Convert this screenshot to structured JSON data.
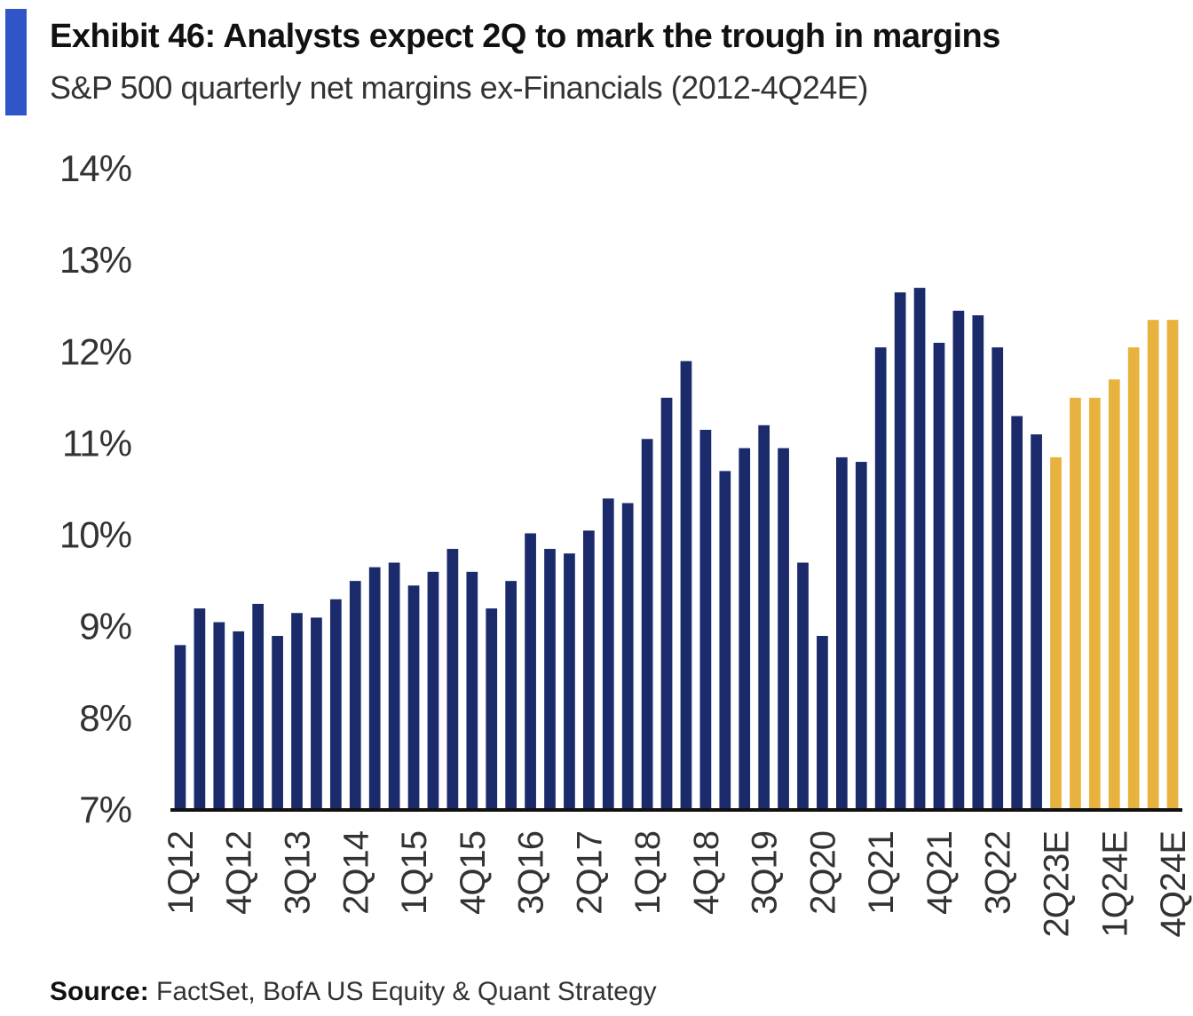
{
  "header": {
    "title": "Exhibit 46: Analysts expect 2Q to mark the trough in margins",
    "subtitle": "S&P 500 quarterly net margins ex-Financials (2012-4Q24E)"
  },
  "footer": {
    "source_label": "Source:",
    "source_text": "FactSet, BofA US Equity & Quant Strategy"
  },
  "colors": {
    "actual": "#1b2a6b",
    "estimate": "#e8b23e",
    "accent": "#2f55c8",
    "axis": "#111111"
  },
  "chart_data": {
    "type": "bar",
    "title": "Exhibit 46: Analysts expect 2Q to mark the trough in margins",
    "subtitle": "S&P 500 quarterly net margins ex-Financials (2012-4Q24E)",
    "xlabel": "",
    "ylabel": "",
    "ylim": [
      7,
      14
    ],
    "yticks": [
      7,
      8,
      9,
      10,
      11,
      12,
      13,
      14
    ],
    "ytick_labels": [
      "7%",
      "8%",
      "9%",
      "10%",
      "11%",
      "12%",
      "13%",
      "14%"
    ],
    "grid": false,
    "categories": [
      "1Q12",
      "2Q12",
      "3Q12",
      "4Q12",
      "1Q13",
      "2Q13",
      "3Q13",
      "4Q13",
      "1Q14",
      "2Q14",
      "3Q14",
      "4Q14",
      "1Q15",
      "2Q15",
      "3Q15",
      "4Q15",
      "1Q16",
      "2Q16",
      "3Q16",
      "4Q16",
      "1Q17",
      "2Q17",
      "3Q17",
      "4Q17",
      "1Q18",
      "2Q18",
      "3Q18",
      "4Q18",
      "1Q19",
      "2Q19",
      "3Q19",
      "4Q19",
      "1Q20",
      "2Q20",
      "3Q20",
      "4Q20",
      "1Q21",
      "2Q21",
      "3Q21",
      "4Q21",
      "1Q22",
      "2Q22",
      "3Q22",
      "4Q22",
      "1Q23",
      "2Q23E",
      "3Q23E",
      "4Q23E",
      "1Q24E",
      "2Q24E",
      "3Q24E",
      "4Q24E"
    ],
    "tick_labels_shown": [
      "1Q12",
      "4Q12",
      "3Q13",
      "2Q14",
      "1Q15",
      "4Q15",
      "3Q16",
      "2Q17",
      "1Q18",
      "4Q18",
      "3Q19",
      "2Q20",
      "1Q21",
      "4Q21",
      "3Q22",
      "2Q23E",
      "1Q24E",
      "4Q24E"
    ],
    "series": [
      {
        "values": [
          8.8,
          9.2,
          9.05,
          8.95,
          9.25,
          8.9,
          9.15,
          9.1,
          9.3,
          9.5,
          9.65,
          9.7,
          9.45,
          9.6,
          9.85,
          9.6,
          9.2,
          9.5,
          10.02,
          9.85,
          9.8,
          10.05,
          10.4,
          10.35,
          11.05,
          11.5,
          11.9,
          11.15,
          10.7,
          10.95,
          11.2,
          10.95,
          9.7,
          8.9,
          10.85,
          10.8,
          12.05,
          12.65,
          12.7,
          12.1,
          12.45,
          12.4,
          12.05,
          11.3,
          11.1,
          10.85,
          11.5,
          11.5,
          11.7,
          12.05,
          12.35,
          12.35
        ],
        "estimate_from_index": 45
      }
    ]
  }
}
